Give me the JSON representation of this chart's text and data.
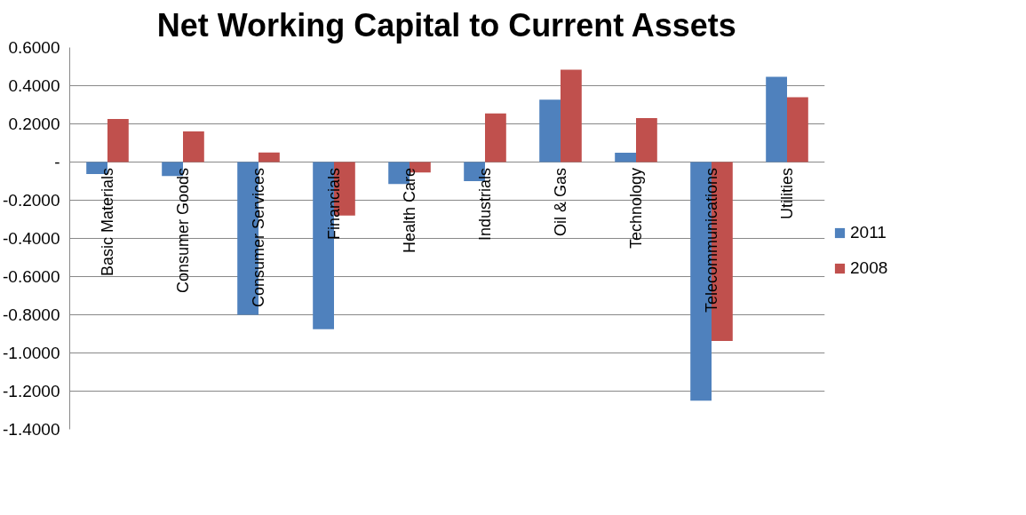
{
  "chart_data": {
    "type": "bar",
    "title": "Net Working Capital to Current Assets",
    "categories": [
      "Basic Materials",
      "Consumer Goods",
      "Consumer Services",
      "Financials",
      "Health Care",
      "Industrials",
      "Oil & Gas",
      "Technology",
      "Telecommunications",
      "Utilities"
    ],
    "series": [
      {
        "name": "2011",
        "color": "#4f81bd",
        "values": [
          -0.063,
          -0.073,
          -0.8,
          -0.875,
          -0.115,
          -0.1,
          0.327,
          0.049,
          -1.25,
          0.447
        ]
      },
      {
        "name": "2008",
        "color": "#c0504d",
        "values": [
          0.226,
          0.16,
          0.05,
          -0.28,
          -0.055,
          0.255,
          0.484,
          0.23,
          -0.937,
          0.339
        ]
      }
    ],
    "ylim": [
      -1.4,
      0.6
    ],
    "yticks": [
      {
        "value": 0.6,
        "label": "0.6000"
      },
      {
        "value": 0.4,
        "label": "0.4000"
      },
      {
        "value": 0.2,
        "label": "0.2000"
      },
      {
        "value": 0,
        "label": "-"
      },
      {
        "value": -0.2,
        "label": "-0.2000"
      },
      {
        "value": -0.4,
        "label": "-0.4000"
      },
      {
        "value": -0.6,
        "label": "-0.6000"
      },
      {
        "value": -0.8,
        "label": "-0.8000"
      },
      {
        "value": -1.0,
        "label": "-1.0000"
      },
      {
        "value": -1.2,
        "label": "-1.2000"
      },
      {
        "value": -1.4,
        "label": "-1.4000"
      }
    ],
    "grid": "y",
    "legend": "right"
  }
}
